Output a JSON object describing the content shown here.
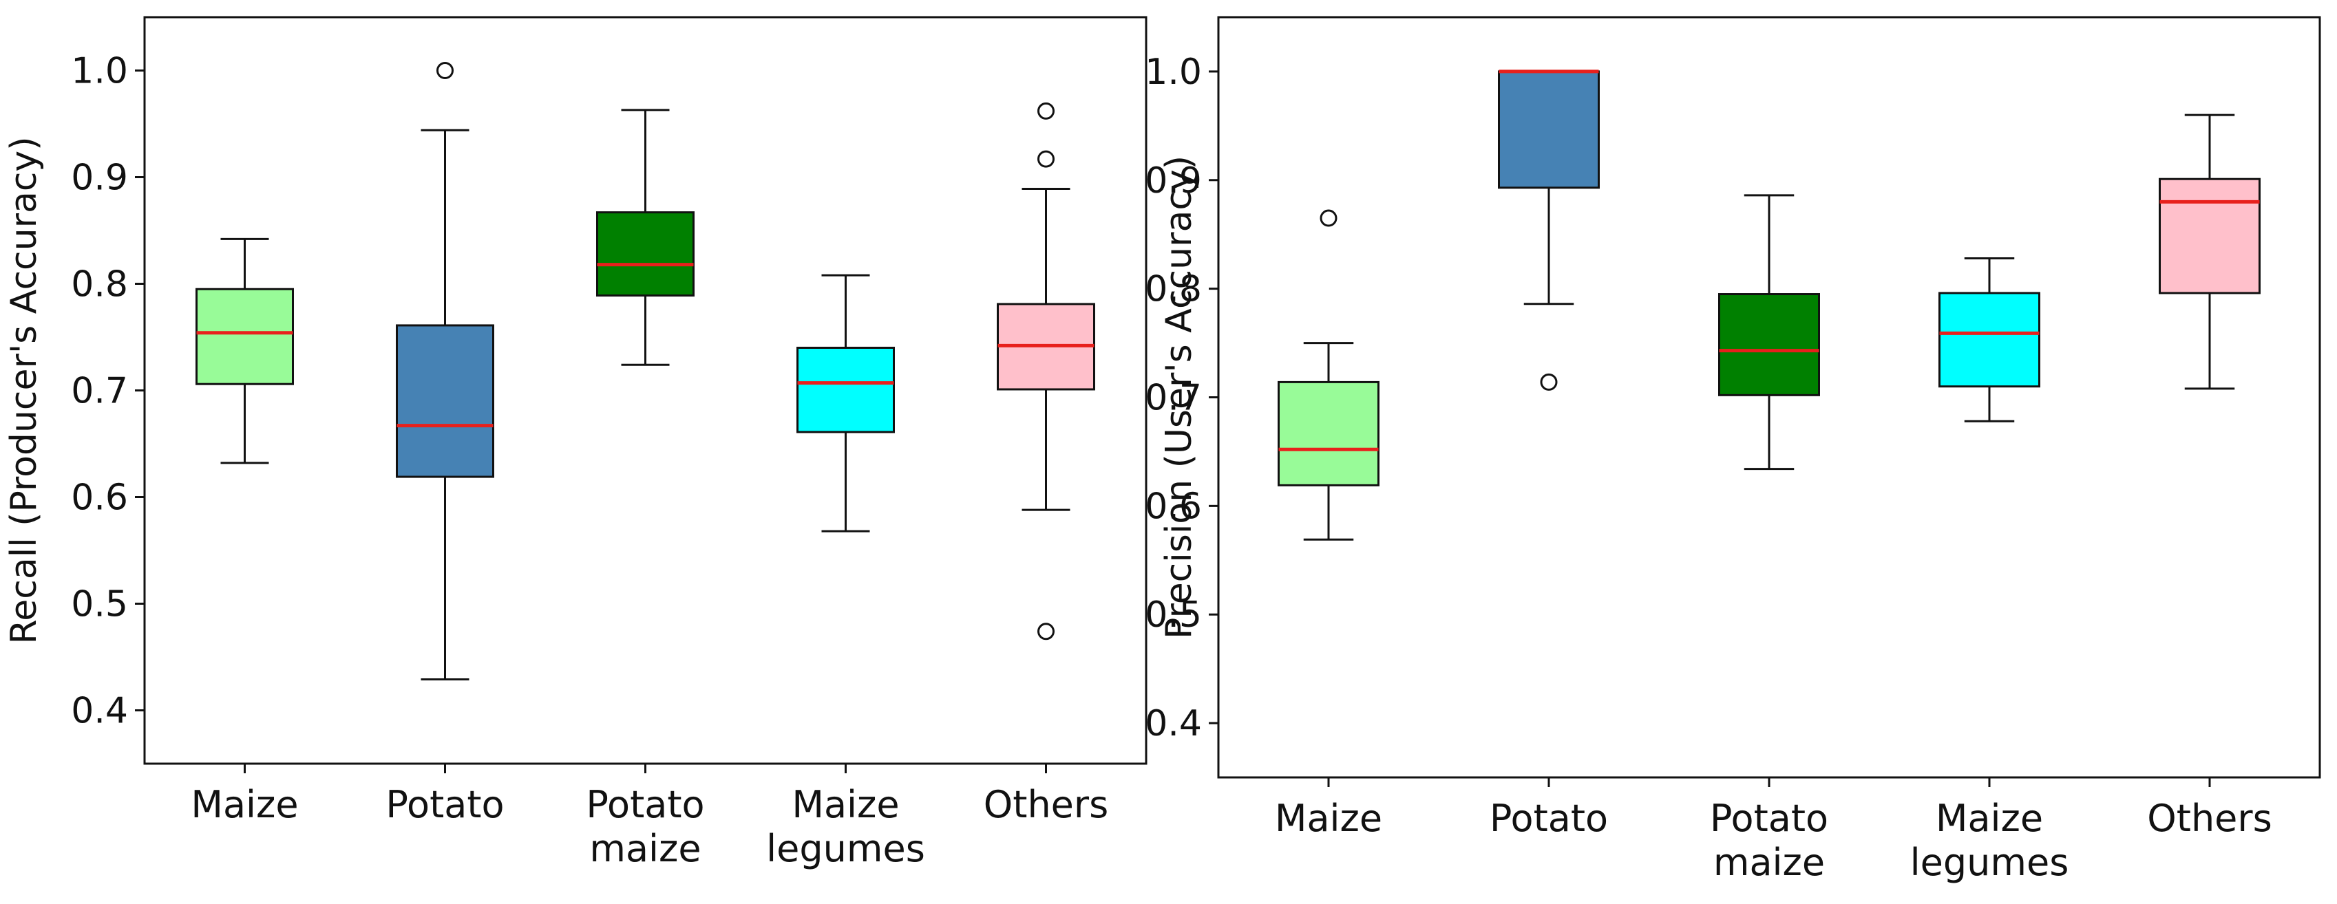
{
  "colors": {
    "median": "#e8201c",
    "whisker": "#111111",
    "box_edge": "#111111",
    "Maize": "#98fb98",
    "Potato": "#4682b4",
    "Potato maize": "#008000",
    "Maize legumes": "#00ffff",
    "Others": "#ffc0cb"
  },
  "chart_data": [
    {
      "type": "box",
      "title": "",
      "xlabel": "",
      "ylabel": "Recall (Producer's Accuracy)",
      "ylim": [
        0.35,
        1.05
      ],
      "yticks": [
        "0.4",
        "0.5",
        "0.6",
        "0.7",
        "0.8",
        "0.9",
        "1.0"
      ],
      "categories": [
        {
          "lines": [
            "Maize"
          ],
          "color_key": "Maize"
        },
        {
          "lines": [
            "Potato"
          ],
          "color_key": "Potato"
        },
        {
          "lines": [
            "Potato",
            "maize"
          ],
          "color_key": "Potato maize"
        },
        {
          "lines": [
            "Maize",
            "legumes"
          ],
          "color_key": "Maize legumes"
        },
        {
          "lines": [
            "Others"
          ],
          "color_key": "Others"
        }
      ],
      "boxes": [
        {
          "whislo": 0.632,
          "q1": 0.706,
          "med": 0.754,
          "q3": 0.795,
          "whishi": 0.842,
          "fliers": []
        },
        {
          "whislo": 0.429,
          "q1": 0.619,
          "med": 0.667,
          "q3": 0.761,
          "whishi": 0.944,
          "fliers": [
            1.0
          ]
        },
        {
          "whislo": 0.724,
          "q1": 0.789,
          "med": 0.818,
          "q3": 0.867,
          "whishi": 0.963,
          "fliers": []
        },
        {
          "whislo": 0.568,
          "q1": 0.661,
          "med": 0.707,
          "q3": 0.74,
          "whishi": 0.808,
          "fliers": []
        },
        {
          "whislo": 0.588,
          "q1": 0.701,
          "med": 0.742,
          "q3": 0.781,
          "whishi": 0.889,
          "fliers": [
            0.962,
            0.917,
            0.474
          ]
        }
      ]
    },
    {
      "type": "box",
      "title": "",
      "xlabel": "",
      "ylabel": "Precision (User's Accuracy)",
      "ylim": [
        0.35,
        1.05
      ],
      "yticks": [
        "0.4",
        "0.5",
        "0.6",
        "0.7",
        "0.8",
        "0.9",
        "1.0"
      ],
      "categories": [
        {
          "lines": [
            "Maize"
          ],
          "color_key": "Maize"
        },
        {
          "lines": [
            "Potato"
          ],
          "color_key": "Potato"
        },
        {
          "lines": [
            "Potato",
            "maize"
          ],
          "color_key": "Potato maize"
        },
        {
          "lines": [
            "Maize",
            "legumes"
          ],
          "color_key": "Maize legumes"
        },
        {
          "lines": [
            "Others"
          ],
          "color_key": "Others"
        }
      ],
      "boxes": [
        {
          "whislo": 0.569,
          "q1": 0.619,
          "med": 0.652,
          "q3": 0.714,
          "whishi": 0.75,
          "fliers": [
            0.865
          ]
        },
        {
          "whislo": 0.786,
          "q1": 0.893,
          "med": 1.0,
          "q3": 1.0,
          "whishi": 1.0,
          "fliers": [
            0.714
          ]
        },
        {
          "whislo": 0.634,
          "q1": 0.702,
          "med": 0.743,
          "q3": 0.795,
          "whishi": 0.886,
          "fliers": []
        },
        {
          "whislo": 0.678,
          "q1": 0.71,
          "med": 0.759,
          "q3": 0.796,
          "whishi": 0.828,
          "fliers": []
        },
        {
          "whislo": 0.708,
          "q1": 0.796,
          "med": 0.88,
          "q3": 0.901,
          "whishi": 0.96,
          "fliers": []
        }
      ]
    }
  ]
}
